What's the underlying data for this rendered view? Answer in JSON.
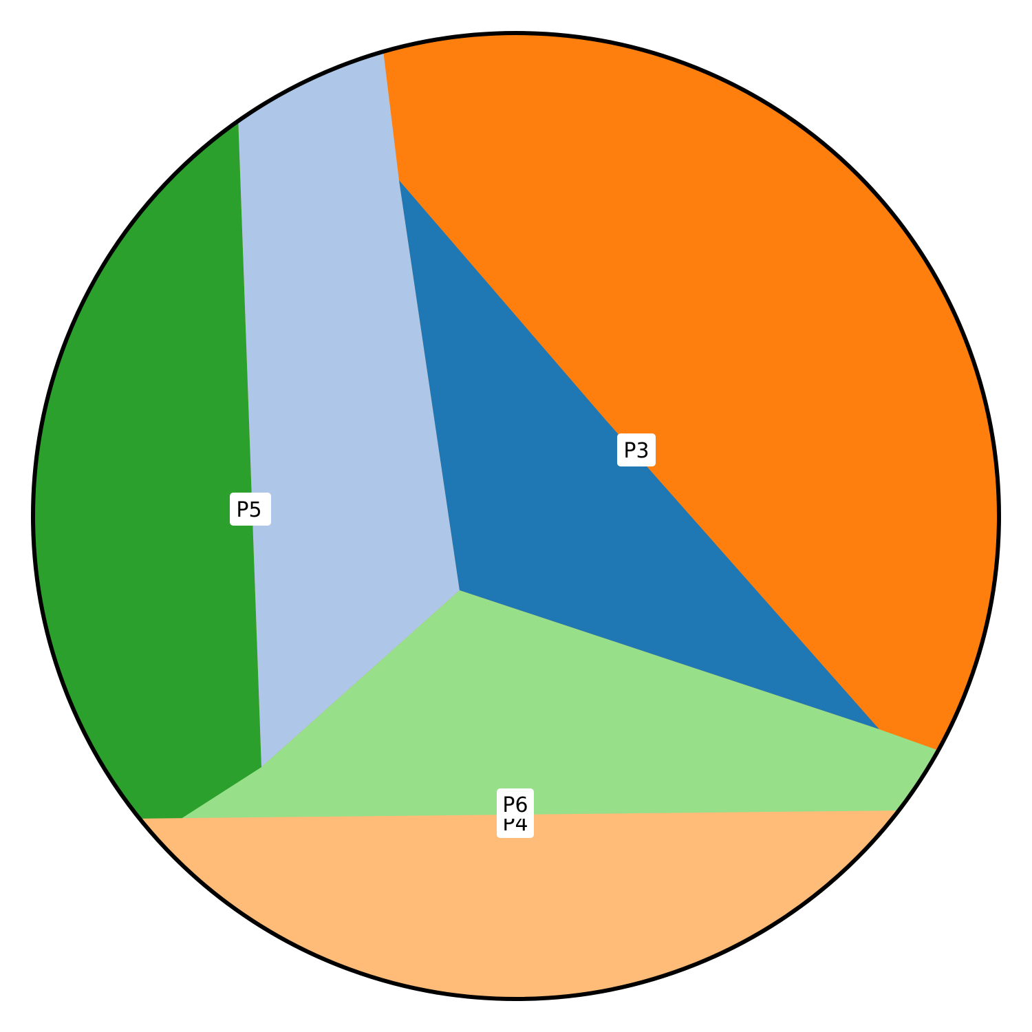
{
  "regions": [
    {
      "id": "p1",
      "color": "#1f77b4"
    },
    {
      "id": "p2",
      "color": "#aec7e8"
    },
    {
      "id": "p3",
      "color": "#ff7f0e"
    },
    {
      "id": "p4",
      "color": "#ffbb78"
    },
    {
      "id": "p5",
      "color": "#2ca02c"
    },
    {
      "id": "p6",
      "color": "#98df8a"
    }
  ],
  "labels": {
    "p3": "P3",
    "p5": "P5",
    "p6": "P6",
    "p4": "P4"
  },
  "outline_color": "#000000",
  "label_background": "#ffffff"
}
